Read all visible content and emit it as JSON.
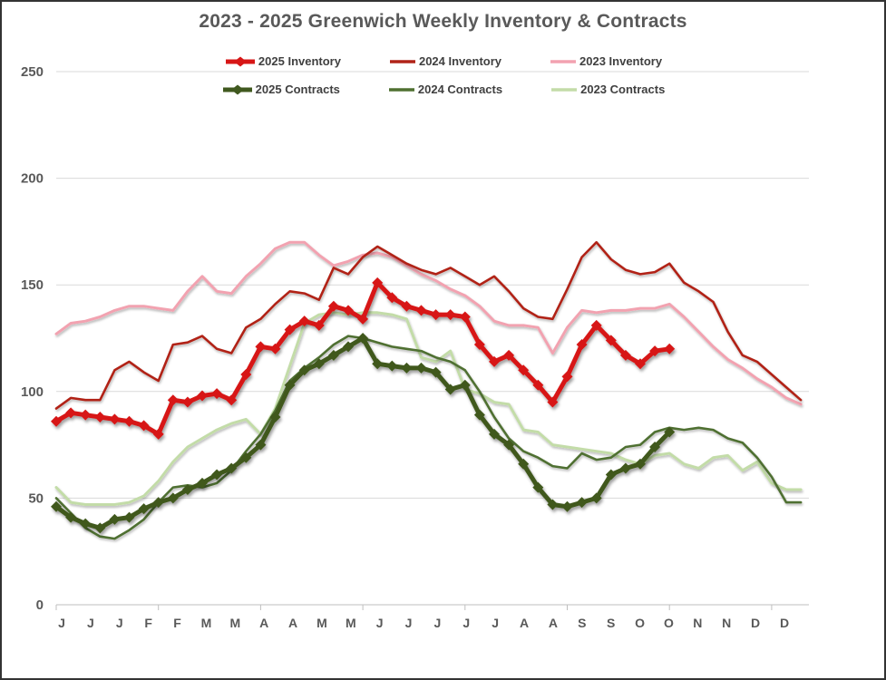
{
  "page": {
    "title": "2023 - 2025 Greenwich Weekly Inventory & Contracts"
  },
  "chart_data": {
    "type": "line",
    "title": "2023 - 2025 Greenwich Weekly Inventory & Contracts",
    "xlabel": "",
    "ylabel": "",
    "ylim": [
      0,
      250
    ],
    "y_ticks": [
      0,
      50,
      100,
      150,
      200,
      250
    ],
    "x_labels": [
      "J",
      "J",
      "J",
      "F",
      "F",
      "M",
      "M",
      "A",
      "A",
      "M",
      "M",
      "J",
      "J",
      "J",
      "J",
      "J",
      "A",
      "A",
      "S",
      "S",
      "O",
      "O",
      "N",
      "N",
      "D",
      "D"
    ],
    "x_label_note": "month initials, one label per 2 weeks, 52 weekly categories",
    "grid": true,
    "legend_position": "top",
    "colors": {
      "grid": "#D9D9D9",
      "axis": "#BFBFBF",
      "axis_text": "#595959",
      "legend_text": "#404040",
      "title_text": "#595959"
    },
    "series": [
      {
        "name": "2025 Inventory",
        "color": "#D71616",
        "width": 5,
        "marker": "diamond",
        "values": [
          86,
          90,
          89,
          88,
          87,
          86,
          84,
          80,
          96,
          95,
          98,
          99,
          96,
          108,
          121,
          120,
          129,
          133,
          131,
          140,
          138,
          134,
          151,
          144,
          140,
          138,
          136,
          136,
          135,
          122,
          114,
          117,
          110,
          103,
          95,
          107,
          122,
          131,
          124,
          117,
          113,
          119,
          120
        ]
      },
      {
        "name": "2024 Inventory",
        "color": "#B12318",
        "width": 2.6,
        "marker": "none",
        "values": [
          92,
          97,
          96,
          96,
          110,
          114,
          109,
          105,
          122,
          123,
          126,
          120,
          118,
          130,
          134,
          141,
          147,
          146,
          143,
          158,
          155,
          163,
          168,
          164,
          160,
          157,
          155,
          158,
          154,
          150,
          154,
          147,
          139,
          135,
          134,
          148,
          163,
          170,
          162,
          157,
          155,
          156,
          160,
          151,
          147,
          142,
          128,
          117,
          114,
          108,
          102,
          96
        ]
      },
      {
        "name": "2023 Inventory",
        "color": "#F2A2B0",
        "width": 3,
        "marker": "none",
        "values": [
          127,
          132,
          133,
          135,
          138,
          140,
          140,
          139,
          138,
          147,
          154,
          147,
          146,
          154,
          160,
          167,
          170,
          170,
          164,
          159,
          161,
          164,
          165,
          163,
          159,
          155,
          152,
          148,
          145,
          140,
          133,
          131,
          131,
          130,
          118,
          130,
          138,
          137,
          138,
          138,
          139,
          139,
          141,
          135,
          128,
          121,
          115,
          111,
          106,
          102,
          97,
          94
        ]
      },
      {
        "name": "2025 Contracts",
        "color": "#40591F",
        "width": 5,
        "marker": "diamond",
        "values": [
          46,
          41,
          38,
          36,
          40,
          41,
          45,
          48,
          50,
          54,
          57,
          61,
          64,
          69,
          75,
          88,
          103,
          110,
          113,
          117,
          121,
          125,
          113,
          112,
          111,
          111,
          109,
          101,
          103,
          89,
          80,
          75,
          66,
          55,
          47,
          46,
          48,
          50,
          61,
          64,
          66,
          74,
          81
        ]
      },
      {
        "name": "2024 Contracts",
        "color": "#4F7030",
        "width": 2.6,
        "marker": "none",
        "values": [
          50,
          43,
          36,
          32,
          31,
          35,
          40,
          48,
          55,
          56,
          55,
          57,
          63,
          72,
          80,
          91,
          105,
          111,
          116,
          122,
          126,
          125,
          123,
          121,
          120,
          119,
          116,
          114,
          110,
          100,
          88,
          78,
          72,
          69,
          65,
          64,
          71,
          68,
          69,
          74,
          75,
          81,
          83,
          82,
          83,
          82,
          78,
          76,
          69,
          60,
          48,
          48
        ]
      },
      {
        "name": "2023 Contracts",
        "color": "#C3DCA8",
        "width": 3,
        "marker": "none",
        "values": [
          55,
          48,
          47,
          47,
          47,
          48,
          51,
          58,
          67,
          74,
          78,
          82,
          85,
          87,
          80,
          92,
          112,
          132,
          136,
          137,
          136,
          137,
          137,
          136,
          134,
          116,
          114,
          119,
          101,
          99,
          95,
          94,
          82,
          81,
          75,
          74,
          73,
          72,
          71,
          68,
          66,
          70,
          71,
          66,
          64,
          69,
          70,
          63,
          67,
          57,
          54,
          54
        ]
      }
    ]
  }
}
